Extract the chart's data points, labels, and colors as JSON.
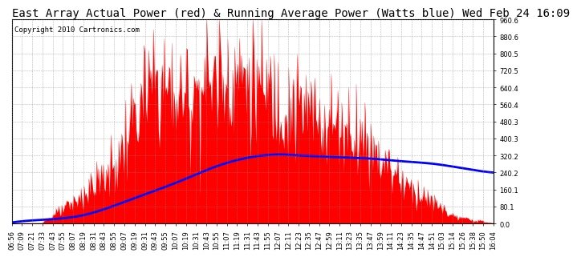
{
  "title": "East Array Actual Power (red) & Running Average Power (Watts blue) Wed Feb 24 16:09",
  "copyright": "Copyright 2010 Cartronics.com",
  "ymax": 960.6,
  "ymin": 0.0,
  "yticks": [
    0.0,
    80.1,
    160.1,
    240.2,
    320.2,
    400.3,
    480.3,
    560.4,
    640.4,
    720.5,
    800.5,
    880.6,
    960.6
  ],
  "bg_color": "#ffffff",
  "grid_color": "#888888",
  "bar_color": "red",
  "avg_color": "blue",
  "title_fontsize": 10,
  "copyright_fontsize": 6.5,
  "tick_fontsize": 6.0,
  "xtick_labels": [
    "06:56",
    "07:09",
    "07:21",
    "07:33",
    "07:43",
    "07:55",
    "08:07",
    "08:19",
    "08:31",
    "08:43",
    "08:55",
    "09:07",
    "09:19",
    "09:31",
    "09:43",
    "09:55",
    "10:07",
    "10:19",
    "10:31",
    "10:43",
    "10:55",
    "11:07",
    "11:19",
    "11:31",
    "11:43",
    "11:55",
    "12:07",
    "12:11",
    "12:23",
    "12:35",
    "12:47",
    "12:59",
    "13:11",
    "13:23",
    "13:35",
    "13:47",
    "13:59",
    "14:11",
    "14:23",
    "14:35",
    "14:47",
    "14:51",
    "15:03",
    "15:14",
    "15:26",
    "15:38",
    "15:50",
    "16:04"
  ],
  "avg_control_x": [
    0.0,
    0.08,
    0.15,
    0.22,
    0.28,
    0.35,
    0.42,
    0.48,
    0.52,
    0.56,
    0.6,
    0.65,
    0.7,
    0.75,
    0.8,
    0.88,
    0.95,
    1.0
  ],
  "avg_control_y": [
    5,
    20,
    40,
    90,
    140,
    200,
    265,
    305,
    320,
    325,
    320,
    315,
    310,
    305,
    295,
    280,
    255,
    240
  ]
}
